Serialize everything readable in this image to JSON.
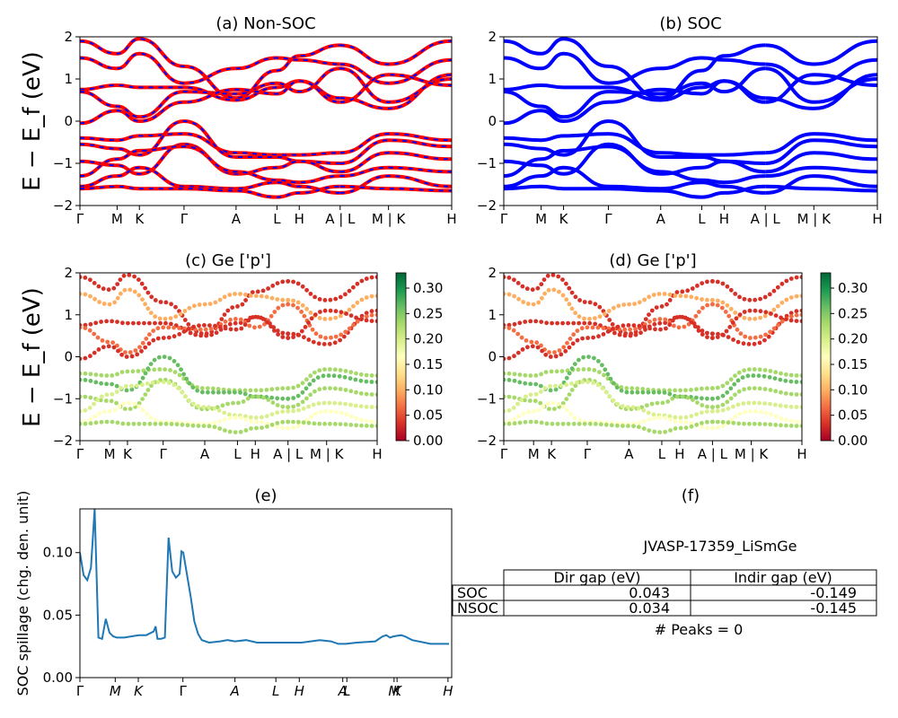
{
  "ylabel": "E − E_f (eV)",
  "kpath": [
    "Γ",
    "M",
    "K",
    "Γ",
    "A",
    "L",
    "H",
    "A | L",
    "M | K",
    "H"
  ],
  "chart_data": [
    {
      "id": "a",
      "type": "line",
      "title": "(a) Non-SOC",
      "ylabel": "E − E_f (eV)",
      "ylim": [
        -2,
        2
      ],
      "yticks": [
        "2",
        "1",
        "0",
        "−1",
        "−2"
      ],
      "xticks": [
        "Γ",
        "M",
        "K",
        "Γ",
        "A",
        "L",
        "H",
        "A | L",
        "M | K",
        "H"
      ],
      "colors": {
        "up": "#ff0000",
        "down": "#0000ff"
      },
      "series": [
        {
          "values": [
            1.9,
            1.6,
            1.95,
            1.3,
            0.55,
            1.2,
            1.55,
            1.8,
            1.35,
            1.9
          ]
        },
        {
          "values": [
            1.5,
            1.25,
            1.6,
            0.9,
            1.25,
            1.5,
            1.45,
            1.35,
            0.9,
            1.45
          ]
        },
        {
          "values": [
            0.75,
            0.85,
            0.8,
            0.8,
            0.5,
            0.8,
            0.95,
            0.55,
            0.3,
            1.1
          ]
        },
        {
          "values": [
            0.7,
            0.35,
            0.1,
            0.7,
            0.65,
            0.9,
            0.7,
            1.25,
            0.45,
            1.0
          ]
        },
        {
          "values": [
            -0.05,
            0.25,
            0.0,
            0.45,
            0.75,
            0.65,
            0.95,
            0.45,
            1.1,
            0.85
          ]
        },
        {
          "values": [
            -0.4,
            -0.45,
            -0.35,
            -0.3,
            -0.75,
            -0.8,
            -0.8,
            -0.75,
            -0.3,
            -0.45
          ]
        },
        {
          "values": [
            -0.55,
            -0.65,
            -0.8,
            0.0,
            -0.85,
            -0.85,
            -0.95,
            -1.0,
            -0.45,
            -0.6
          ]
        },
        {
          "values": [
            -0.95,
            -1.05,
            -1.25,
            -0.55,
            -1.25,
            -1.1,
            -0.95,
            -1.2,
            -0.75,
            -0.9
          ]
        },
        {
          "values": [
            -1.3,
            -0.9,
            -0.7,
            -0.6,
            -1.2,
            -1.4,
            -1.45,
            -1.3,
            -1.1,
            -1.2
          ]
        },
        {
          "values": [
            -1.55,
            -1.3,
            -1.1,
            -1.55,
            -1.6,
            -1.45,
            -1.55,
            -1.7,
            -1.3,
            -1.55
          ]
        },
        {
          "values": [
            -1.6,
            -1.55,
            -1.6,
            -1.6,
            -1.65,
            -1.8,
            -1.7,
            -1.55,
            -1.6,
            -1.65
          ]
        }
      ]
    },
    {
      "id": "b",
      "type": "line",
      "title": "(b) SOC",
      "ylim": [
        -2,
        2
      ],
      "yticks": [
        "2",
        "1",
        "0",
        "−1",
        "−2"
      ],
      "xticks": [
        "Γ",
        "M",
        "K",
        "Γ",
        "A",
        "L",
        "H",
        "A | L",
        "M | K",
        "H"
      ],
      "colors": {
        "line": "#0000ff"
      },
      "series": [
        {
          "values": [
            1.9,
            1.6,
            1.95,
            1.3,
            0.55,
            1.2,
            1.55,
            1.8,
            1.35,
            1.9
          ]
        },
        {
          "values": [
            1.5,
            1.25,
            1.6,
            0.9,
            1.25,
            1.5,
            1.45,
            1.35,
            0.9,
            1.45
          ]
        },
        {
          "values": [
            0.75,
            0.85,
            0.8,
            0.8,
            0.5,
            0.8,
            0.95,
            0.55,
            0.3,
            1.1
          ]
        },
        {
          "values": [
            0.7,
            0.35,
            0.1,
            0.7,
            0.65,
            0.9,
            0.7,
            1.25,
            0.45,
            1.0
          ]
        },
        {
          "values": [
            -0.05,
            0.25,
            0.0,
            0.45,
            0.75,
            0.65,
            0.95,
            0.45,
            1.1,
            0.85
          ]
        },
        {
          "values": [
            -0.4,
            -0.45,
            -0.35,
            -0.3,
            -0.75,
            -0.8,
            -0.8,
            -0.75,
            -0.3,
            -0.45
          ]
        },
        {
          "values": [
            -0.55,
            -0.65,
            -0.8,
            0.0,
            -0.85,
            -0.85,
            -0.95,
            -1.0,
            -0.45,
            -0.6
          ]
        },
        {
          "values": [
            -0.95,
            -1.05,
            -1.25,
            -0.55,
            -1.25,
            -1.1,
            -0.95,
            -1.2,
            -0.75,
            -0.9
          ]
        },
        {
          "values": [
            -1.3,
            -0.9,
            -0.7,
            -0.6,
            -1.2,
            -1.4,
            -1.45,
            -1.3,
            -1.1,
            -1.2
          ]
        },
        {
          "values": [
            -1.55,
            -1.3,
            -1.1,
            -1.55,
            -1.6,
            -1.45,
            -1.55,
            -1.7,
            -1.3,
            -1.55
          ]
        },
        {
          "values": [
            -1.6,
            -1.55,
            -1.6,
            -1.6,
            -1.65,
            -1.8,
            -1.7,
            -1.55,
            -1.6,
            -1.65
          ]
        }
      ]
    },
    {
      "id": "c",
      "type": "scatter",
      "title": "(c)  Ge ['p']",
      "ylabel": "E − E_f (eV)",
      "ylim": [
        -2,
        2
      ],
      "yticks": [
        "2",
        "1",
        "0",
        "−1",
        "−2"
      ],
      "xticks": [
        "Γ",
        "M",
        "K",
        "Γ",
        "A",
        "L",
        "H",
        "A | L",
        "M | K",
        "H"
      ],
      "colorbar": {
        "range": [
          0,
          0.33
        ],
        "ticks": [
          "0.30",
          "0.25",
          "0.20",
          "0.15",
          "0.10",
          "0.05",
          "0.00"
        ],
        "cmap": "RdYlGn"
      },
      "series": [
        {
          "values": [
            1.9,
            1.6,
            1.95,
            1.3,
            0.55,
            1.2,
            1.55,
            1.8,
            1.35,
            1.9
          ],
          "weight": 0.02
        },
        {
          "values": [
            1.5,
            1.25,
            1.6,
            0.9,
            1.25,
            1.5,
            1.45,
            1.35,
            0.9,
            1.45
          ],
          "weight": 0.1
        },
        {
          "values": [
            0.75,
            0.85,
            0.8,
            0.8,
            0.5,
            0.8,
            0.95,
            0.55,
            0.3,
            1.1
          ],
          "weight": 0.04
        },
        {
          "values": [
            0.7,
            0.35,
            0.1,
            0.7,
            0.65,
            0.9,
            0.7,
            1.25,
            0.45,
            1.0
          ],
          "weight": 0.06
        },
        {
          "values": [
            -0.05,
            0.25,
            0.0,
            0.45,
            0.75,
            0.65,
            0.95,
            0.45,
            1.1,
            0.85
          ],
          "weight": 0.03
        },
        {
          "values": [
            -0.4,
            -0.45,
            -0.35,
            -0.3,
            -0.75,
            -0.8,
            -0.8,
            -0.75,
            -0.3,
            -0.45
          ],
          "weight": 0.22
        },
        {
          "values": [
            -0.55,
            -0.65,
            -0.8,
            0.0,
            -0.85,
            -0.85,
            -0.95,
            -1.0,
            -0.45,
            -0.6
          ],
          "weight": 0.25
        },
        {
          "values": [
            -0.95,
            -1.05,
            -1.25,
            -0.55,
            -1.25,
            -1.1,
            -0.95,
            -1.2,
            -0.75,
            -0.9
          ],
          "weight": 0.23
        },
        {
          "values": [
            -1.3,
            -0.9,
            -0.7,
            -0.6,
            -1.2,
            -1.4,
            -1.45,
            -1.3,
            -1.1,
            -1.2
          ],
          "weight": 0.2
        },
        {
          "values": [
            -1.55,
            -1.3,
            -1.1,
            -1.55,
            -1.6,
            -1.45,
            -1.55,
            -1.7,
            -1.3,
            -1.55
          ],
          "weight": 0.18
        },
        {
          "values": [
            -1.6,
            -1.55,
            -1.6,
            -1.6,
            -1.65,
            -1.8,
            -1.7,
            -1.55,
            -1.6,
            -1.65
          ],
          "weight": 0.24
        }
      ]
    },
    {
      "id": "d",
      "type": "scatter",
      "title": "(d) Ge ['p']",
      "ylim": [
        -2,
        2
      ],
      "yticks": [
        "2",
        "1",
        "0",
        "−1",
        "−2"
      ],
      "xticks": [
        "Γ",
        "M",
        "K",
        "Γ",
        "A",
        "L",
        "H",
        "A | L",
        "M | K",
        "H"
      ],
      "colorbar": {
        "range": [
          0,
          0.33
        ],
        "ticks": [
          "0.30",
          "0.25",
          "0.20",
          "0.15",
          "0.10",
          "0.05",
          "0.00"
        ],
        "cmap": "RdYlGn"
      },
      "series": [
        {
          "values": [
            1.9,
            1.6,
            1.95,
            1.3,
            0.55,
            1.2,
            1.55,
            1.8,
            1.35,
            1.9
          ],
          "weight": 0.02
        },
        {
          "values": [
            1.5,
            1.25,
            1.6,
            0.9,
            1.25,
            1.5,
            1.45,
            1.35,
            0.9,
            1.45
          ],
          "weight": 0.1
        },
        {
          "values": [
            0.75,
            0.85,
            0.8,
            0.8,
            0.5,
            0.8,
            0.95,
            0.55,
            0.3,
            1.1
          ],
          "weight": 0.04
        },
        {
          "values": [
            0.7,
            0.35,
            0.1,
            0.7,
            0.65,
            0.9,
            0.7,
            1.25,
            0.45,
            1.0
          ],
          "weight": 0.06
        },
        {
          "values": [
            -0.05,
            0.25,
            0.0,
            0.45,
            0.75,
            0.65,
            0.95,
            0.45,
            1.1,
            0.85
          ],
          "weight": 0.03
        },
        {
          "values": [
            -0.4,
            -0.45,
            -0.35,
            -0.3,
            -0.75,
            -0.8,
            -0.8,
            -0.75,
            -0.3,
            -0.45
          ],
          "weight": 0.22
        },
        {
          "values": [
            -0.55,
            -0.65,
            -0.8,
            0.0,
            -0.85,
            -0.85,
            -0.95,
            -1.0,
            -0.45,
            -0.6
          ],
          "weight": 0.25
        },
        {
          "values": [
            -0.95,
            -1.05,
            -1.25,
            -0.55,
            -1.25,
            -1.1,
            -0.95,
            -1.2,
            -0.75,
            -0.9
          ],
          "weight": 0.23
        },
        {
          "values": [
            -1.3,
            -0.9,
            -0.7,
            -0.6,
            -1.2,
            -1.4,
            -1.45,
            -1.3,
            -1.1,
            -1.2
          ],
          "weight": 0.2
        },
        {
          "values": [
            -1.55,
            -1.3,
            -1.1,
            -1.55,
            -1.6,
            -1.45,
            -1.55,
            -1.7,
            -1.3,
            -1.55
          ],
          "weight": 0.18
        },
        {
          "values": [
            -1.6,
            -1.55,
            -1.6,
            -1.6,
            -1.65,
            -1.8,
            -1.7,
            -1.55,
            -1.6,
            -1.65
          ],
          "weight": 0.24
        }
      ]
    },
    {
      "id": "e",
      "type": "line",
      "title": "(e)",
      "ylabel": "SOC spillage (chg. den. unit)",
      "ylim": [
        0,
        0.135
      ],
      "yticks": [
        "0.10",
        "0.05",
        "0.00"
      ],
      "ytick_values": [
        0.1,
        0.05,
        0.0
      ],
      "xticks": [
        "Γ",
        "M",
        "K",
        "Γ",
        "A",
        "L",
        "H",
        "A",
        "L",
        "M",
        "K",
        "H"
      ],
      "color": "#1f77b4",
      "x": [
        0.0,
        0.01,
        0.02,
        0.03,
        0.04,
        0.05,
        0.06,
        0.07,
        0.08,
        0.09,
        0.1,
        0.12,
        0.14,
        0.16,
        0.18,
        0.2,
        0.205,
        0.21,
        0.22,
        0.23,
        0.24,
        0.25,
        0.26,
        0.27,
        0.275,
        0.28,
        0.3,
        0.31,
        0.32,
        0.33,
        0.35,
        0.38,
        0.4,
        0.42,
        0.45,
        0.48,
        0.5,
        0.55,
        0.6,
        0.65,
        0.68,
        0.7,
        0.72,
        0.75,
        0.8,
        0.82,
        0.83,
        0.84,
        0.85,
        0.87,
        0.88,
        0.9,
        0.95,
        1.0
      ],
      "values": [
        0.1,
        0.082,
        0.078,
        0.088,
        0.135,
        0.032,
        0.031,
        0.047,
        0.036,
        0.033,
        0.032,
        0.032,
        0.033,
        0.034,
        0.034,
        0.037,
        0.041,
        0.031,
        0.031,
        0.032,
        0.112,
        0.085,
        0.08,
        0.083,
        0.101,
        0.1,
        0.065,
        0.045,
        0.035,
        0.03,
        0.028,
        0.029,
        0.03,
        0.029,
        0.03,
        0.028,
        0.028,
        0.028,
        0.028,
        0.03,
        0.029,
        0.027,
        0.027,
        0.028,
        0.029,
        0.033,
        0.034,
        0.032,
        0.033,
        0.034,
        0.033,
        0.03,
        0.027,
        0.027
      ]
    },
    {
      "id": "f",
      "type": "table",
      "title": "(f)",
      "subtitle": "JVASP-17359_LiSmGe",
      "columns": [
        "Dir gap (eV)",
        "Indir gap (eV)"
      ],
      "rows": [
        {
          "label": "SOC",
          "cells": [
            "0.043",
            "-0.149"
          ]
        },
        {
          "label": "NSOC",
          "cells": [
            "0.034",
            "-0.145"
          ]
        }
      ],
      "footer": "# Peaks = 0"
    }
  ]
}
